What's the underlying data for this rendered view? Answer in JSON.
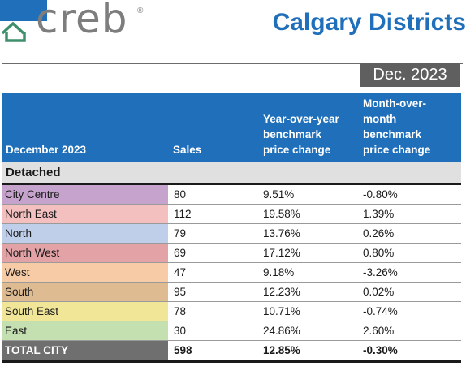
{
  "brand": {
    "logo_text": "creb",
    "registered": "®"
  },
  "title": "Calgary Districts",
  "date_tab": "Dec. 2023",
  "header": {
    "col_name": "December 2023",
    "col_sales": "Sales",
    "col_yoy": [
      "Year-over-year",
      "benchmark",
      "price change"
    ],
    "col_mom": [
      "Month-over-",
      "month",
      "benchmark",
      "price change"
    ]
  },
  "section": "Detached",
  "rows": [
    {
      "district": "City Centre",
      "sales": "80",
      "yoy": "9.51%",
      "mom": "-0.80%",
      "color": "#c5a3cc"
    },
    {
      "district": "North East",
      "sales": "112",
      "yoy": "19.58%",
      "mom": "1.39%",
      "color": "#f4bfbf"
    },
    {
      "district": "North",
      "sales": "79",
      "yoy": "13.76%",
      "mom": "0.26%",
      "color": "#bfcfea"
    },
    {
      "district": "North West",
      "sales": "69",
      "yoy": "17.12%",
      "mom": "0.80%",
      "color": "#e3a2a6"
    },
    {
      "district": "West",
      "sales": "47",
      "yoy": "9.18%",
      "mom": "-3.26%",
      "color": "#f7cba6"
    },
    {
      "district": "South",
      "sales": "95",
      "yoy": "12.23%",
      "mom": "0.02%",
      "color": "#dfbb92"
    },
    {
      "district": "South East",
      "sales": "78",
      "yoy": "10.71%",
      "mom": "-0.74%",
      "color": "#f1e598"
    },
    {
      "district": "East",
      "sales": "30",
      "yoy": "24.86%",
      "mom": "2.60%",
      "color": "#c4dfb0"
    }
  ],
  "total": {
    "district": "TOTAL CITY",
    "sales": "598",
    "yoy": "12.85%",
    "mom": "-0.30%"
  },
  "colors": {
    "brand_blue": "#1f6fba",
    "logo_green": "#3e8f6b",
    "logo_grey": "#7d7d7d",
    "tab_grey": "#5f5f5f"
  }
}
